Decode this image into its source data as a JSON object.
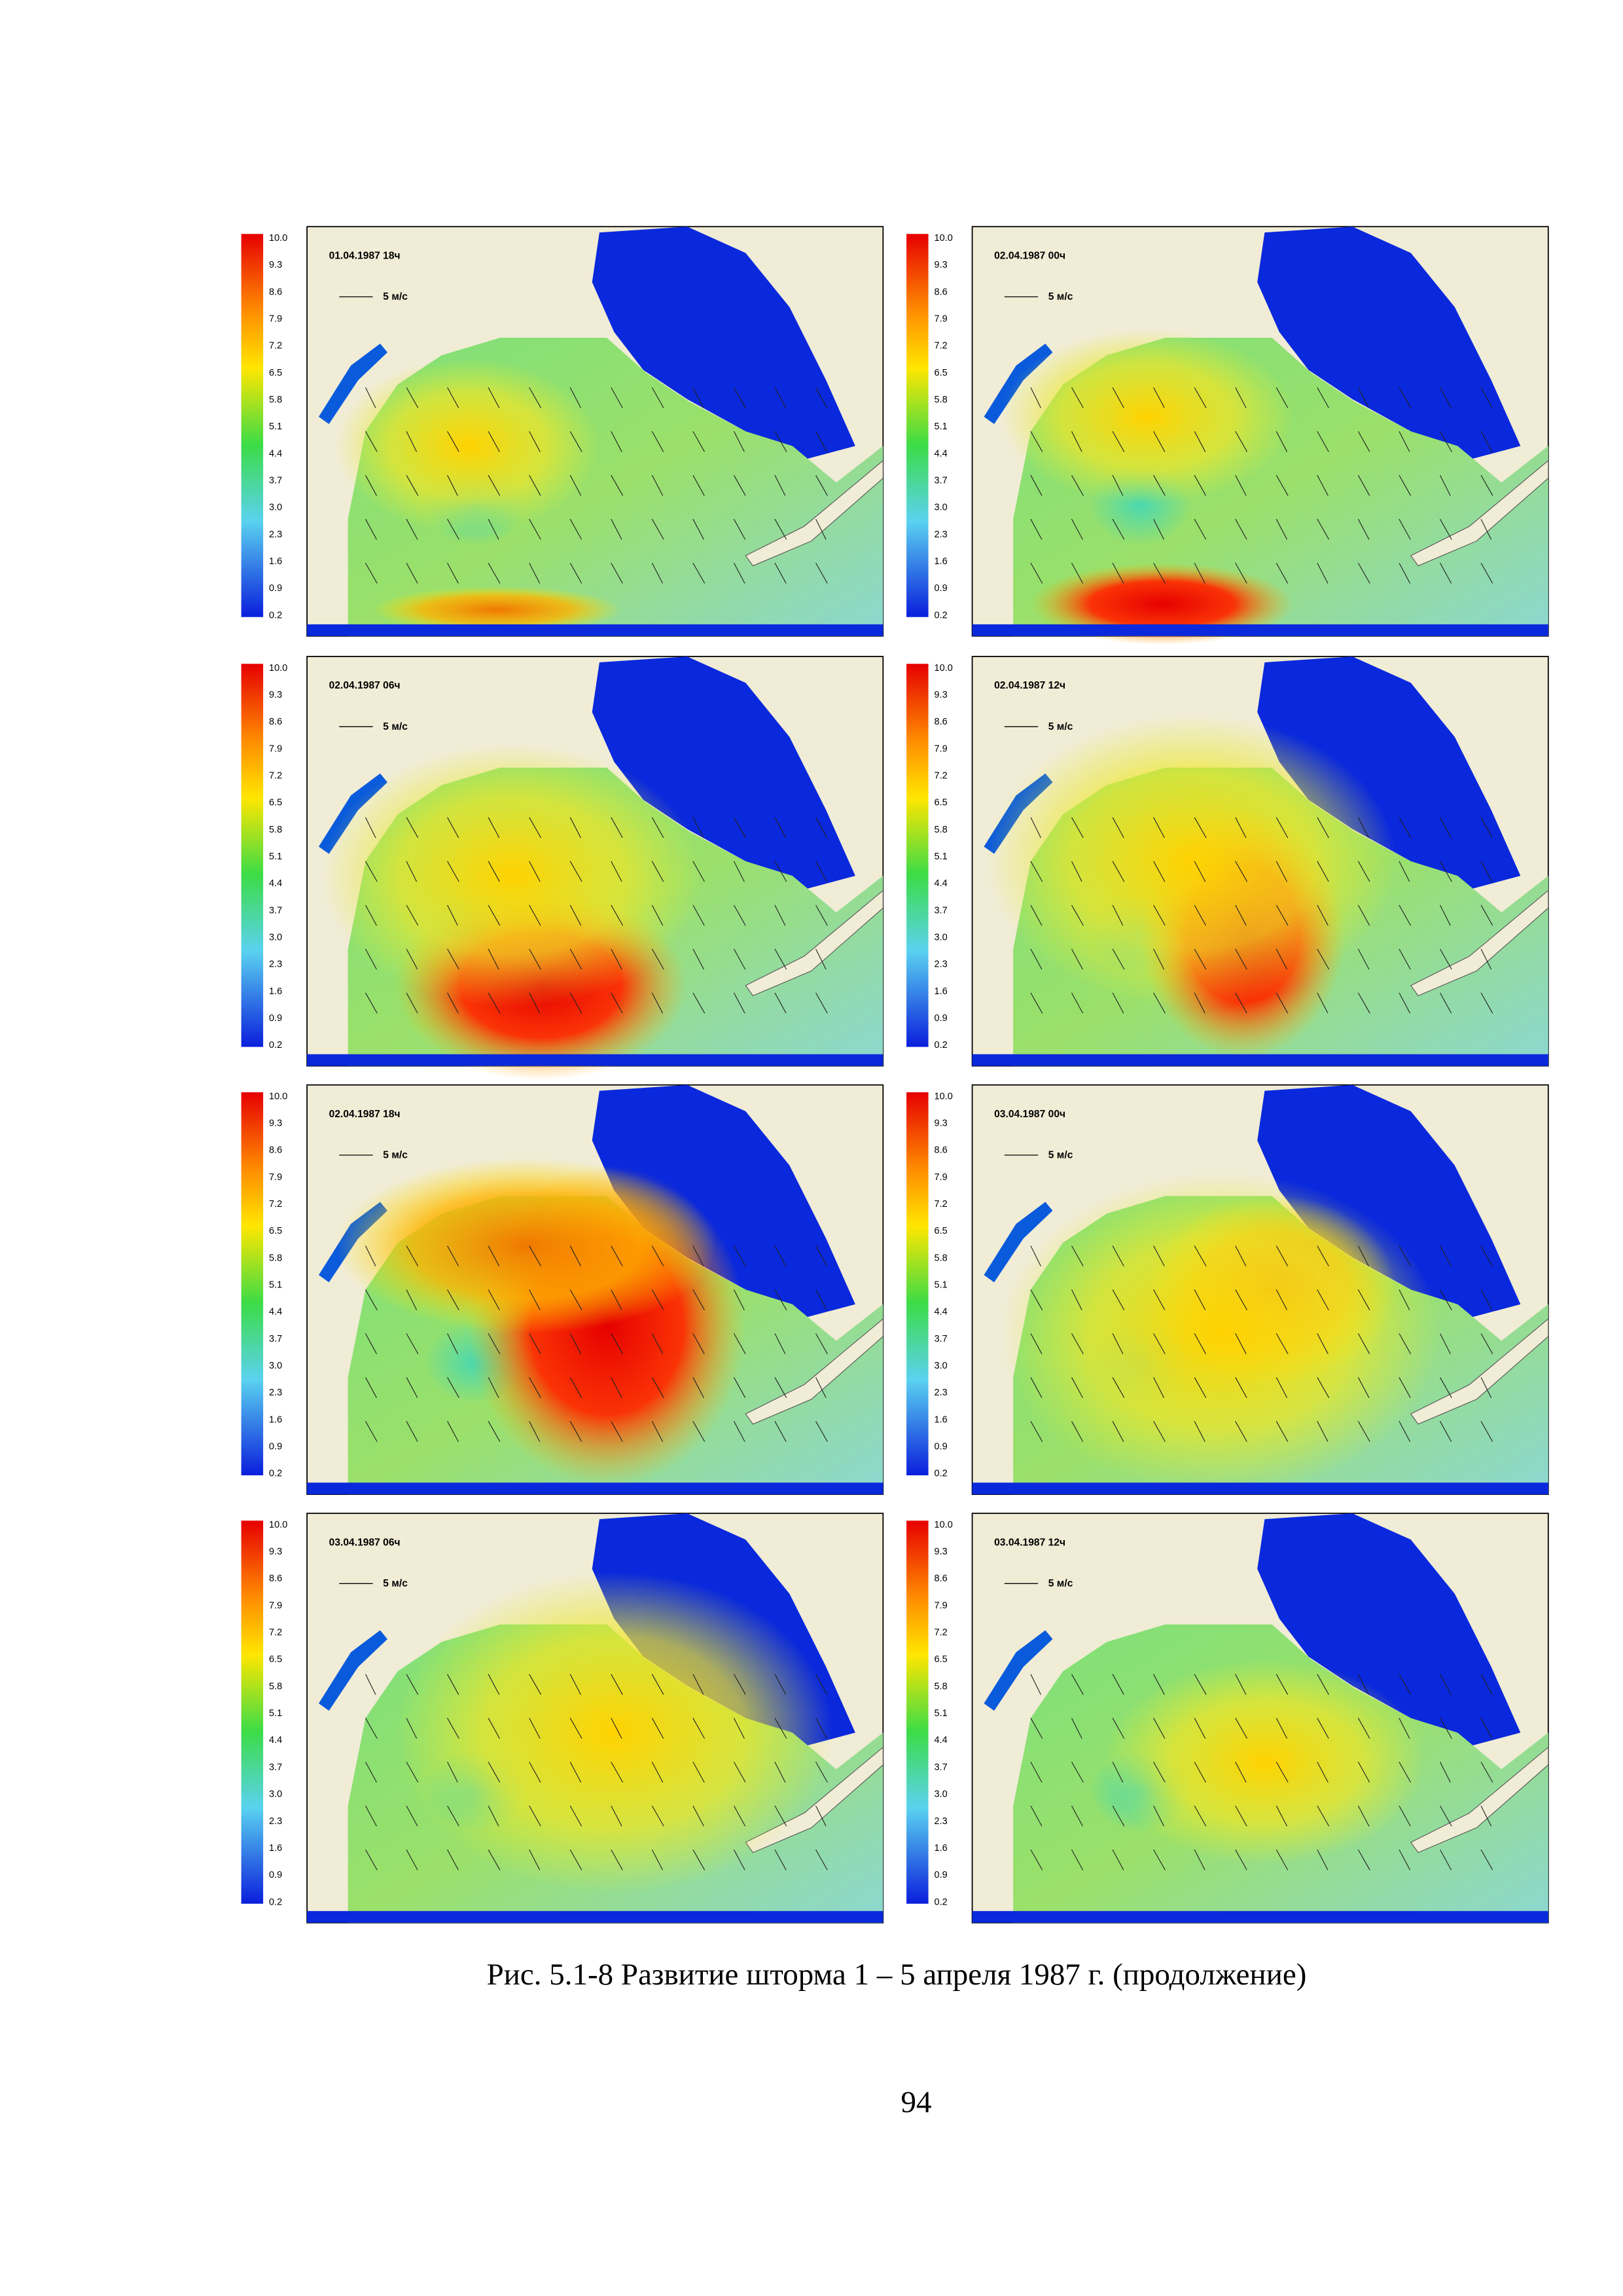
{
  "figure": {
    "colorbar_labels": [
      "10.0",
      "9.3",
      "8.6",
      "7.9",
      "7.2",
      "6.5",
      "5.8",
      "5.1",
      "4.4",
      "3.7",
      "3.0",
      "2.3",
      "1.6",
      "0.9",
      "0.2"
    ],
    "scale_label": "5 м/с",
    "panels": [
      {
        "timestamp": "01.04.1987  18ч"
      },
      {
        "timestamp": "02.04.1987  00ч"
      },
      {
        "timestamp": "02.04.1987  06ч"
      },
      {
        "timestamp": "02.04.1987  12ч"
      },
      {
        "timestamp": "02.04.1987  18ч"
      },
      {
        "timestamp": "03.04.1987  00ч"
      },
      {
        "timestamp": "03.04.1987  06ч"
      },
      {
        "timestamp": "03.04.1987  12ч"
      }
    ],
    "caption": "Рис. 5.1-8 Развитие шторма 1 – 5 апреля 1987 г. (продолжение)"
  },
  "page_number": "94"
}
